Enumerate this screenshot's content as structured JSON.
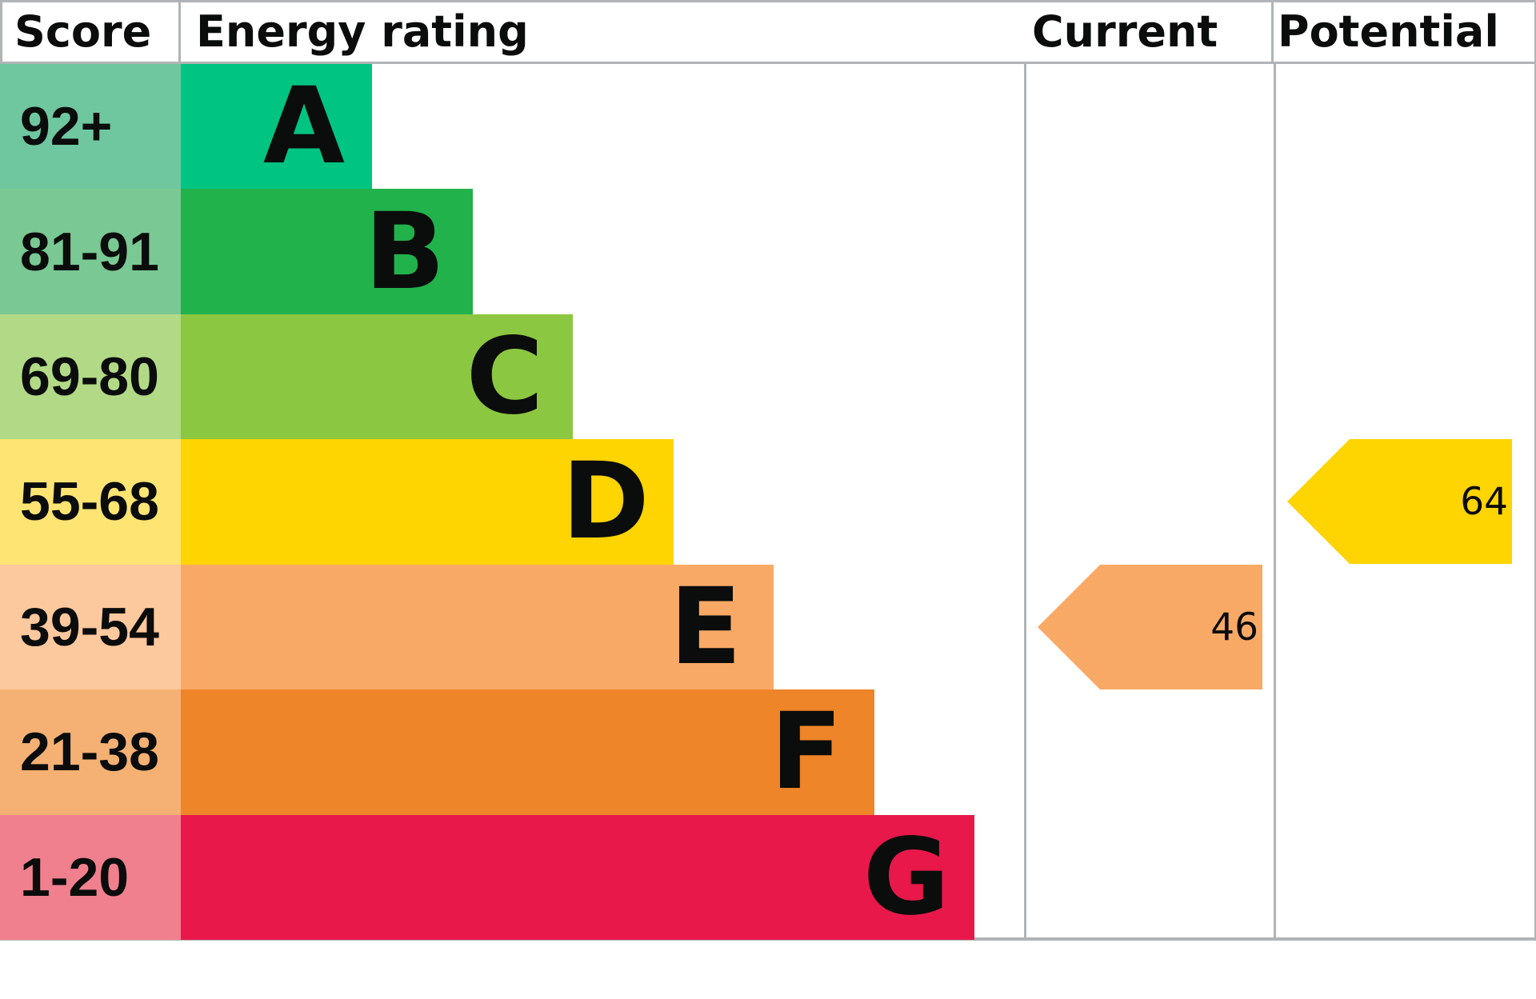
{
  "header": {
    "score": "Score",
    "energy_rating": "Energy rating",
    "current": "Current",
    "potential": "Potential"
  },
  "bands": [
    {
      "letter": "A",
      "score_range": "92+",
      "color": "#00c481",
      "tint": "#6fc7a0"
    },
    {
      "letter": "B",
      "score_range": "81-91",
      "color": "#21b24c",
      "tint": "#7ac893"
    },
    {
      "letter": "C",
      "score_range": "69-80",
      "color": "#8bc740",
      "tint": "#b2da86"
    },
    {
      "letter": "D",
      "score_range": "55-68",
      "color": "#fed401",
      "tint": "#fee473"
    },
    {
      "letter": "E",
      "score_range": "39-54",
      "color": "#f9a966",
      "tint": "#fcc89d"
    },
    {
      "letter": "F",
      "score_range": "21-38",
      "color": "#ee8528",
      "tint": "#f4b173"
    },
    {
      "letter": "G",
      "score_range": "1-20",
      "color": "#e8184a",
      "tint": "#f0808e"
    }
  ],
  "current": {
    "value": "46",
    "band": "E",
    "color": "#f9a966"
  },
  "potential": {
    "value": "64",
    "band": "D",
    "color": "#fed401"
  },
  "colors": {
    "border": "#b1b4b6",
    "text": "#0b0c0c",
    "background": "#ffffff"
  },
  "chart_data": {
    "type": "bar",
    "title": "Energy rating",
    "categories": [
      "A",
      "B",
      "C",
      "D",
      "E",
      "F",
      "G"
    ],
    "score_ranges": [
      "92+",
      "81-91",
      "69-80",
      "55-68",
      "39-54",
      "21-38",
      "1-20"
    ],
    "band_colors": [
      "#00c481",
      "#21b24c",
      "#8bc740",
      "#fed401",
      "#f9a966",
      "#ee8528",
      "#e8184a"
    ],
    "bar_lengths_relative": [
      1,
      2,
      3,
      4,
      5,
      6,
      7
    ],
    "score_scale": [
      1,
      100
    ],
    "columns": [
      "Score",
      "Energy rating",
      "Current",
      "Potential"
    ],
    "series": [
      {
        "name": "Current",
        "value": 46,
        "band": "E"
      },
      {
        "name": "Potential",
        "value": 64,
        "band": "D"
      }
    ],
    "legend_position": "none",
    "grid": false
  }
}
